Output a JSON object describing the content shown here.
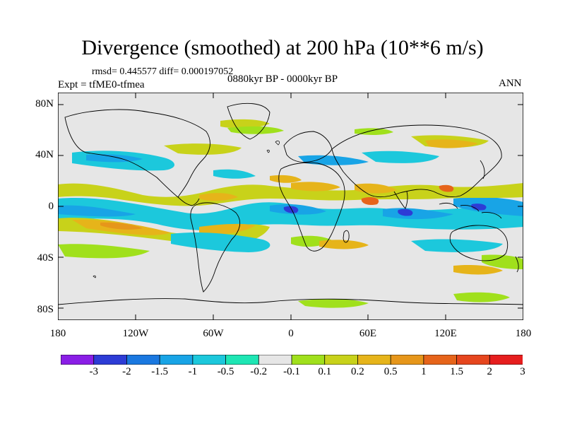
{
  "title": "Divergence (smoothed) at 200 hPa (10**6 m/s)",
  "stats_line": "rmsd= 0.445577 diff= 0.000197052",
  "experiment": "Expt = tfME0-tfmea",
  "period": "0880kyr BP - 0000kyr BP",
  "season": "ANN",
  "lat_labels": [
    "80N",
    "40N",
    "0",
    "40S",
    "80S"
  ],
  "lon_labels": [
    "180",
    "120W",
    "60W",
    "0",
    "60E",
    "120E",
    "180"
  ],
  "colorbar": {
    "colors": [
      "#8a1ee6",
      "#2d3cd6",
      "#1a78e0",
      "#18a4e6",
      "#1cc8dc",
      "#1ee6b4",
      "#e6e6e6",
      "#a0e01c",
      "#c8d21a",
      "#e6b41a",
      "#e6961a",
      "#e6641a",
      "#e6461e",
      "#e61e1e"
    ],
    "tick_labels": [
      "-3",
      "-2",
      "-1.5",
      "-1",
      "-0.5",
      "-0.2",
      "-0.1",
      "0.1",
      "0.2",
      "0.5",
      "1",
      "1.5",
      "2",
      "3"
    ]
  }
}
